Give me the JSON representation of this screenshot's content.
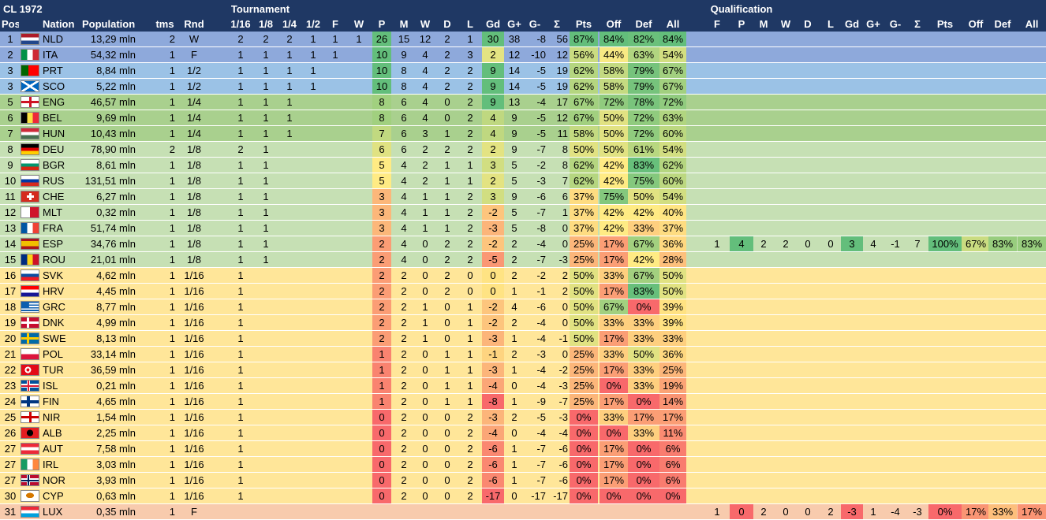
{
  "title": "CL 1972",
  "section_tournament": "Tournament",
  "section_qualification": "Qualification",
  "headers": [
    "Pos",
    "Nation",
    "Population",
    "tms",
    "Rnd",
    "1/16",
    "1/8",
    "1/4",
    "1/2",
    "F",
    "W",
    "P",
    "M",
    "W",
    "D",
    "L",
    "Gd",
    "G+",
    "G-",
    "Σ",
    "Pts",
    "Off",
    "Def",
    "All"
  ],
  "q_headers": [
    "F",
    "P",
    "M",
    "W",
    "D",
    "L",
    "Gd",
    "G+",
    "G-",
    "Σ",
    "Pts",
    "Off",
    "Def",
    "All"
  ],
  "colors": {
    "tier_w": "#8ea9db",
    "tier_f": "#8ea9db",
    "tier_12": "#9bc2e6",
    "tier_14": "#a9d08e",
    "tier_18": "#c6e0b4",
    "tier_116": "#ffe699",
    "tier_q": "#f8cbad",
    "header": "#1f3864"
  },
  "rows": [
    {
      "pos": "1",
      "nation": "NLD",
      "pop": "13,29 mln",
      "tms": "2",
      "rnd": "W",
      "t": [
        "2",
        "2",
        "2",
        "1",
        "1",
        "1"
      ],
      "p": "26",
      "m": "15",
      "w": "12",
      "d": "2",
      "l": "1",
      "gd": "30",
      "gp": "38",
      "gm": "-8",
      "s": "56",
      "pts": "87%",
      "off": "84%",
      "def": "82%",
      "all": "84%",
      "tier": "w",
      "flag": "nld"
    },
    {
      "pos": "2",
      "nation": "ITA",
      "pop": "54,32 mln",
      "tms": "1",
      "rnd": "F",
      "t": [
        "1",
        "1",
        "1",
        "1",
        "1",
        ""
      ],
      "p": "10",
      "m": "9",
      "w": "4",
      "d": "2",
      "l": "3",
      "gd": "2",
      "gp": "12",
      "gm": "-10",
      "s": "12",
      "pts": "56%",
      "off": "44%",
      "def": "63%",
      "all": "54%",
      "tier": "f",
      "flag": "ita"
    },
    {
      "pos": "3",
      "nation": "PRT",
      "pop": "8,84 mln",
      "tms": "1",
      "rnd": "1/2",
      "t": [
        "1",
        "1",
        "1",
        "1",
        "",
        ""
      ],
      "p": "10",
      "m": "8",
      "w": "4",
      "d": "2",
      "l": "2",
      "gd": "9",
      "gp": "14",
      "gm": "-5",
      "s": "19",
      "pts": "62%",
      "off": "58%",
      "def": "79%",
      "all": "67%",
      "tier": "12",
      "flag": "prt"
    },
    {
      "pos": "3",
      "nation": "SCO",
      "pop": "5,22 mln",
      "tms": "1",
      "rnd": "1/2",
      "t": [
        "1",
        "1",
        "1",
        "1",
        "",
        ""
      ],
      "p": "10",
      "m": "8",
      "w": "4",
      "d": "2",
      "l": "2",
      "gd": "9",
      "gp": "14",
      "gm": "-5",
      "s": "19",
      "pts": "62%",
      "off": "58%",
      "def": "79%",
      "all": "67%",
      "tier": "12",
      "flag": "sco"
    },
    {
      "pos": "5",
      "nation": "ENG",
      "pop": "46,57 mln",
      "tms": "1",
      "rnd": "1/4",
      "t": [
        "1",
        "1",
        "1",
        "",
        "",
        ""
      ],
      "p": "8",
      "m": "6",
      "w": "4",
      "d": "0",
      "l": "2",
      "gd": "9",
      "gp": "13",
      "gm": "-4",
      "s": "17",
      "pts": "67%",
      "off": "72%",
      "def": "78%",
      "all": "72%",
      "tier": "14",
      "flag": "eng"
    },
    {
      "pos": "6",
      "nation": "BEL",
      "pop": "9,69 mln",
      "tms": "1",
      "rnd": "1/4",
      "t": [
        "1",
        "1",
        "1",
        "",
        "",
        ""
      ],
      "p": "8",
      "m": "6",
      "w": "4",
      "d": "0",
      "l": "2",
      "gd": "4",
      "gp": "9",
      "gm": "-5",
      "s": "12",
      "pts": "67%",
      "off": "50%",
      "def": "72%",
      "all": "63%",
      "tier": "14",
      "flag": "bel"
    },
    {
      "pos": "7",
      "nation": "HUN",
      "pop": "10,43 mln",
      "tms": "1",
      "rnd": "1/4",
      "t": [
        "1",
        "1",
        "1",
        "",
        "",
        ""
      ],
      "p": "7",
      "m": "6",
      "w": "3",
      "d": "1",
      "l": "2",
      "gd": "4",
      "gp": "9",
      "gm": "-5",
      "s": "11",
      "pts": "58%",
      "off": "50%",
      "def": "72%",
      "all": "60%",
      "tier": "14",
      "flag": "hun"
    },
    {
      "pos": "8",
      "nation": "DEU",
      "pop": "78,90 mln",
      "tms": "2",
      "rnd": "1/8",
      "t": [
        "2",
        "1",
        "",
        "",
        "",
        ""
      ],
      "p": "6",
      "m": "6",
      "w": "2",
      "d": "2",
      "l": "2",
      "gd": "2",
      "gp": "9",
      "gm": "-7",
      "s": "8",
      "pts": "50%",
      "off": "50%",
      "def": "61%",
      "all": "54%",
      "tier": "18",
      "flag": "deu"
    },
    {
      "pos": "9",
      "nation": "BGR",
      "pop": "8,61 mln",
      "tms": "1",
      "rnd": "1/8",
      "t": [
        "1",
        "1",
        "",
        "",
        "",
        ""
      ],
      "p": "5",
      "m": "4",
      "w": "2",
      "d": "1",
      "l": "1",
      "gd": "3",
      "gp": "5",
      "gm": "-2",
      "s": "8",
      "pts": "62%",
      "off": "42%",
      "def": "83%",
      "all": "62%",
      "tier": "18",
      "flag": "bgr"
    },
    {
      "pos": "10",
      "nation": "RUS",
      "pop": "131,51 mln",
      "tms": "1",
      "rnd": "1/8",
      "t": [
        "1",
        "1",
        "",
        "",
        "",
        ""
      ],
      "p": "5",
      "m": "4",
      "w": "2",
      "d": "1",
      "l": "1",
      "gd": "2",
      "gp": "5",
      "gm": "-3",
      "s": "7",
      "pts": "62%",
      "off": "42%",
      "def": "75%",
      "all": "60%",
      "tier": "18",
      "flag": "rus"
    },
    {
      "pos": "11",
      "nation": "CHE",
      "pop": "6,27 mln",
      "tms": "1",
      "rnd": "1/8",
      "t": [
        "1",
        "1",
        "",
        "",
        "",
        ""
      ],
      "p": "3",
      "m": "4",
      "w": "1",
      "d": "1",
      "l": "2",
      "gd": "3",
      "gp": "9",
      "gm": "-6",
      "s": "6",
      "pts": "37%",
      "off": "75%",
      "def": "50%",
      "all": "54%",
      "tier": "18",
      "flag": "che"
    },
    {
      "pos": "12",
      "nation": "MLT",
      "pop": "0,32 mln",
      "tms": "1",
      "rnd": "1/8",
      "t": [
        "1",
        "1",
        "",
        "",
        "",
        ""
      ],
      "p": "3",
      "m": "4",
      "w": "1",
      "d": "1",
      "l": "2",
      "gd": "-2",
      "gp": "5",
      "gm": "-7",
      "s": "1",
      "pts": "37%",
      "off": "42%",
      "def": "42%",
      "all": "40%",
      "tier": "18",
      "flag": "mlt"
    },
    {
      "pos": "13",
      "nation": "FRA",
      "pop": "51,74 mln",
      "tms": "1",
      "rnd": "1/8",
      "t": [
        "1",
        "1",
        "",
        "",
        "",
        ""
      ],
      "p": "3",
      "m": "4",
      "w": "1",
      "d": "1",
      "l": "2",
      "gd": "-3",
      "gp": "5",
      "gm": "-8",
      "s": "0",
      "pts": "37%",
      "off": "42%",
      "def": "33%",
      "all": "37%",
      "tier": "18",
      "flag": "fra"
    },
    {
      "pos": "14",
      "nation": "ESP",
      "pop": "34,76 mln",
      "tms": "1",
      "rnd": "1/8",
      "t": [
        "1",
        "1",
        "",
        "",
        "",
        ""
      ],
      "p": "2",
      "m": "4",
      "w": "0",
      "d": "2",
      "l": "2",
      "gd": "-2",
      "gp": "2",
      "gm": "-4",
      "s": "0",
      "pts": "25%",
      "off": "17%",
      "def": "67%",
      "all": "36%",
      "tier": "18",
      "flag": "esp",
      "q": [
        "1",
        "4",
        "2",
        "2",
        "0",
        "0",
        "3",
        "4",
        "-1",
        "7",
        "100%",
        "67%",
        "83%",
        "83%"
      ]
    },
    {
      "pos": "15",
      "nation": "ROU",
      "pop": "21,01 mln",
      "tms": "1",
      "rnd": "1/8",
      "t": [
        "1",
        "1",
        "",
        "",
        "",
        ""
      ],
      "p": "2",
      "m": "4",
      "w": "0",
      "d": "2",
      "l": "2",
      "gd": "-5",
      "gp": "2",
      "gm": "-7",
      "s": "-3",
      "pts": "25%",
      "off": "17%",
      "def": "42%",
      "all": "28%",
      "tier": "18",
      "flag": "rou"
    },
    {
      "pos": "16",
      "nation": "SVK",
      "pop": "4,62 mln",
      "tms": "1",
      "rnd": "1/16",
      "t": [
        "1",
        "",
        "",
        "",
        "",
        ""
      ],
      "p": "2",
      "m": "2",
      "w": "0",
      "d": "2",
      "l": "0",
      "gd": "0",
      "gp": "2",
      "gm": "-2",
      "s": "2",
      "pts": "50%",
      "off": "33%",
      "def": "67%",
      "all": "50%",
      "tier": "116",
      "flag": "svk"
    },
    {
      "pos": "17",
      "nation": "HRV",
      "pop": "4,45 mln",
      "tms": "1",
      "rnd": "1/16",
      "t": [
        "1",
        "",
        "",
        "",
        "",
        ""
      ],
      "p": "2",
      "m": "2",
      "w": "0",
      "d": "2",
      "l": "0",
      "gd": "0",
      "gp": "1",
      "gm": "-1",
      "s": "2",
      "pts": "50%",
      "off": "17%",
      "def": "83%",
      "all": "50%",
      "tier": "116",
      "flag": "hrv"
    },
    {
      "pos": "18",
      "nation": "GRC",
      "pop": "8,77 mln",
      "tms": "1",
      "rnd": "1/16",
      "t": [
        "1",
        "",
        "",
        "",
        "",
        ""
      ],
      "p": "2",
      "m": "2",
      "w": "1",
      "d": "0",
      "l": "1",
      "gd": "-2",
      "gp": "4",
      "gm": "-6",
      "s": "0",
      "pts": "50%",
      "off": "67%",
      "def": "0%",
      "all": "39%",
      "tier": "116",
      "flag": "grc"
    },
    {
      "pos": "19",
      "nation": "DNK",
      "pop": "4,99 mln",
      "tms": "1",
      "rnd": "1/16",
      "t": [
        "1",
        "",
        "",
        "",
        "",
        ""
      ],
      "p": "2",
      "m": "2",
      "w": "1",
      "d": "0",
      "l": "1",
      "gd": "-2",
      "gp": "2",
      "gm": "-4",
      "s": "0",
      "pts": "50%",
      "off": "33%",
      "def": "33%",
      "all": "39%",
      "tier": "116",
      "flag": "dnk"
    },
    {
      "pos": "20",
      "nation": "SWE",
      "pop": "8,13 mln",
      "tms": "1",
      "rnd": "1/16",
      "t": [
        "1",
        "",
        "",
        "",
        "",
        ""
      ],
      "p": "2",
      "m": "2",
      "w": "1",
      "d": "0",
      "l": "1",
      "gd": "-3",
      "gp": "1",
      "gm": "-4",
      "s": "-1",
      "pts": "50%",
      "off": "17%",
      "def": "33%",
      "all": "33%",
      "tier": "116",
      "flag": "swe"
    },
    {
      "pos": "21",
      "nation": "POL",
      "pop": "33,14 mln",
      "tms": "1",
      "rnd": "1/16",
      "t": [
        "1",
        "",
        "",
        "",
        "",
        ""
      ],
      "p": "1",
      "m": "2",
      "w": "0",
      "d": "1",
      "l": "1",
      "gd": "-1",
      "gp": "2",
      "gm": "-3",
      "s": "0",
      "pts": "25%",
      "off": "33%",
      "def": "50%",
      "all": "36%",
      "tier": "116",
      "flag": "pol"
    },
    {
      "pos": "22",
      "nation": "TUR",
      "pop": "36,59 mln",
      "tms": "1",
      "rnd": "1/16",
      "t": [
        "1",
        "",
        "",
        "",
        "",
        ""
      ],
      "p": "1",
      "m": "2",
      "w": "0",
      "d": "1",
      "l": "1",
      "gd": "-3",
      "gp": "1",
      "gm": "-4",
      "s": "-2",
      "pts": "25%",
      "off": "17%",
      "def": "33%",
      "all": "25%",
      "tier": "116",
      "flag": "tur"
    },
    {
      "pos": "23",
      "nation": "ISL",
      "pop": "0,21 mln",
      "tms": "1",
      "rnd": "1/16",
      "t": [
        "1",
        "",
        "",
        "",
        "",
        ""
      ],
      "p": "1",
      "m": "2",
      "w": "0",
      "d": "1",
      "l": "1",
      "gd": "-4",
      "gp": "0",
      "gm": "-4",
      "s": "-3",
      "pts": "25%",
      "off": "0%",
      "def": "33%",
      "all": "19%",
      "tier": "116",
      "flag": "isl"
    },
    {
      "pos": "24",
      "nation": "FIN",
      "pop": "4,65 mln",
      "tms": "1",
      "rnd": "1/16",
      "t": [
        "1",
        "",
        "",
        "",
        "",
        ""
      ],
      "p": "1",
      "m": "2",
      "w": "0",
      "d": "1",
      "l": "1",
      "gd": "-8",
      "gp": "1",
      "gm": "-9",
      "s": "-7",
      "pts": "25%",
      "off": "17%",
      "def": "0%",
      "all": "14%",
      "tier": "116",
      "flag": "fin"
    },
    {
      "pos": "25",
      "nation": "NIR",
      "pop": "1,54 mln",
      "tms": "1",
      "rnd": "1/16",
      "t": [
        "1",
        "",
        "",
        "",
        "",
        ""
      ],
      "p": "0",
      "m": "2",
      "w": "0",
      "d": "0",
      "l": "2",
      "gd": "-3",
      "gp": "2",
      "gm": "-5",
      "s": "-3",
      "pts": "0%",
      "off": "33%",
      "def": "17%",
      "all": "17%",
      "tier": "116",
      "flag": "nir"
    },
    {
      "pos": "26",
      "nation": "ALB",
      "pop": "2,25 mln",
      "tms": "1",
      "rnd": "1/16",
      "t": [
        "1",
        "",
        "",
        "",
        "",
        ""
      ],
      "p": "0",
      "m": "2",
      "w": "0",
      "d": "0",
      "l": "2",
      "gd": "-4",
      "gp": "0",
      "gm": "-4",
      "s": "-4",
      "pts": "0%",
      "off": "0%",
      "def": "33%",
      "all": "11%",
      "tier": "116",
      "flag": "alb"
    },
    {
      "pos": "27",
      "nation": "AUT",
      "pop": "7,58 mln",
      "tms": "1",
      "rnd": "1/16",
      "t": [
        "1",
        "",
        "",
        "",
        "",
        ""
      ],
      "p": "0",
      "m": "2",
      "w": "0",
      "d": "0",
      "l": "2",
      "gd": "-6",
      "gp": "1",
      "gm": "-7",
      "s": "-6",
      "pts": "0%",
      "off": "17%",
      "def": "0%",
      "all": "6%",
      "tier": "116",
      "flag": "aut"
    },
    {
      "pos": "27",
      "nation": "IRL",
      "pop": "3,03 mln",
      "tms": "1",
      "rnd": "1/16",
      "t": [
        "1",
        "",
        "",
        "",
        "",
        ""
      ],
      "p": "0",
      "m": "2",
      "w": "0",
      "d": "0",
      "l": "2",
      "gd": "-6",
      "gp": "1",
      "gm": "-7",
      "s": "-6",
      "pts": "0%",
      "off": "17%",
      "def": "0%",
      "all": "6%",
      "tier": "116",
      "flag": "irl"
    },
    {
      "pos": "27",
      "nation": "NOR",
      "pop": "3,93 mln",
      "tms": "1",
      "rnd": "1/16",
      "t": [
        "1",
        "",
        "",
        "",
        "",
        ""
      ],
      "p": "0",
      "m": "2",
      "w": "0",
      "d": "0",
      "l": "2",
      "gd": "-6",
      "gp": "1",
      "gm": "-7",
      "s": "-6",
      "pts": "0%",
      "off": "17%",
      "def": "0%",
      "all": "6%",
      "tier": "116",
      "flag": "nor"
    },
    {
      "pos": "30",
      "nation": "CYP",
      "pop": "0,63 mln",
      "tms": "1",
      "rnd": "1/16",
      "t": [
        "1",
        "",
        "",
        "",
        "",
        ""
      ],
      "p": "0",
      "m": "2",
      "w": "0",
      "d": "0",
      "l": "2",
      "gd": "-17",
      "gp": "0",
      "gm": "-17",
      "s": "-17",
      "pts": "0%",
      "off": "0%",
      "def": "0%",
      "all": "0%",
      "tier": "116",
      "flag": "cyp"
    },
    {
      "pos": "31",
      "nation": "LUX",
      "pop": "0,35 mln",
      "tms": "1",
      "rnd": "F",
      "t": [
        "",
        "",
        "",
        "",
        "",
        ""
      ],
      "p": "",
      "m": "",
      "w": "",
      "d": "",
      "l": "",
      "gd": "",
      "gp": "",
      "gm": "",
      "s": "",
      "pts": "",
      "off": "",
      "def": "",
      "all": "",
      "tier": "q",
      "flag": "lux",
      "q": [
        "1",
        "0",
        "2",
        "0",
        "0",
        "2",
        "-3",
        "1",
        "-4",
        "-3",
        "0%",
        "17%",
        "33%",
        "17%"
      ]
    }
  ]
}
